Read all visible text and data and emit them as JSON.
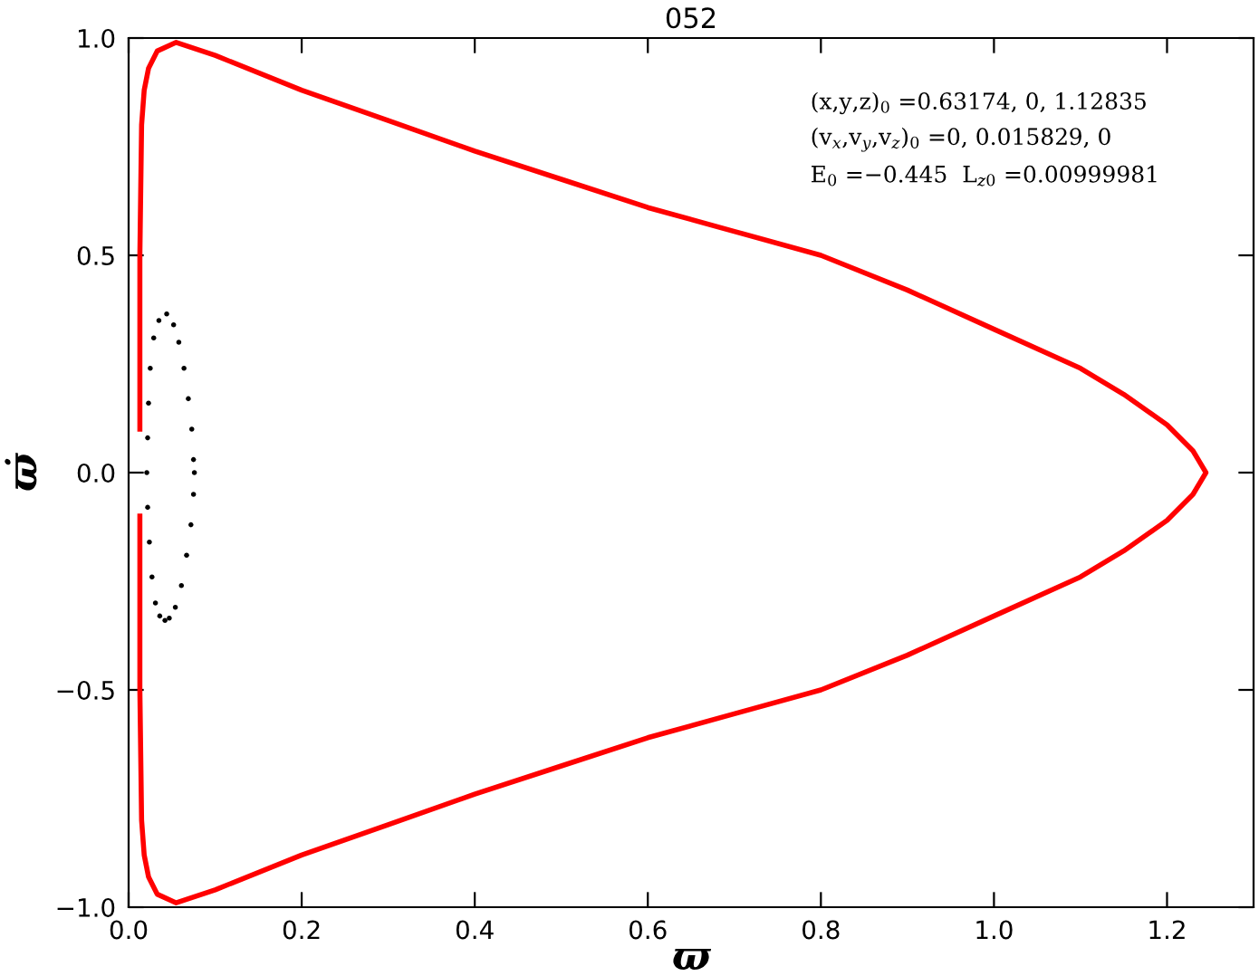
{
  "chart_data": {
    "type": "line",
    "title": "052",
    "xlabel": "ϖ",
    "ylabel": "ϖ̇",
    "annotations": [
      "(x,y,z)$_{0}$ =0.63174, 0, 1.12835",
      "(v$_{x}$,v$_{y}$,v$_{z}$)$_{0}$ =0, 0.015829, 0",
      "E$_{0}$ =−0.445  L$_{z0}$ =0.00999981"
    ],
    "series": [
      {
        "color": "#ff0000",
        "x": [
          0.013,
          0.013,
          0.015,
          0.018,
          0.023,
          0.033,
          0.055,
          0.1,
          0.2,
          0.3,
          0.4,
          0.5,
          0.6,
          0.7,
          0.8,
          0.9,
          1.0,
          1.1,
          1.15,
          1.2,
          1.23,
          1.245,
          1.23,
          1.2,
          1.15,
          1.1,
          1.0,
          0.9,
          0.8,
          0.7,
          0.6,
          0.5,
          0.4,
          0.3,
          0.2,
          0.1,
          0.055,
          0.033,
          0.023,
          0.018,
          0.015,
          0.013,
          0.013
        ],
        "values": [
          0.1,
          0.5,
          0.8,
          0.88,
          0.93,
          0.97,
          0.99,
          0.96,
          0.88,
          0.81,
          0.74,
          0.675,
          0.61,
          0.555,
          0.5,
          0.42,
          0.33,
          0.24,
          0.18,
          0.11,
          0.05,
          0.0,
          -0.05,
          -0.11,
          -0.18,
          -0.24,
          -0.33,
          -0.42,
          -0.5,
          -0.555,
          -0.61,
          -0.675,
          -0.74,
          -0.81,
          -0.88,
          -0.96,
          -0.99,
          -0.97,
          -0.93,
          -0.88,
          -0.8,
          -0.5,
          -0.1
        ]
      },
      {
        "type": "scatter",
        "color": "#000000",
        "x": [
          0.044,
          0.052,
          0.058,
          0.064,
          0.069,
          0.073,
          0.075,
          0.076,
          0.075,
          0.072,
          0.067,
          0.061,
          0.054,
          0.047,
          0.042,
          0.036,
          0.031,
          0.027,
          0.024,
          0.022,
          0.021,
          0.022,
          0.023,
          0.025,
          0.029,
          0.035
        ],
        "values": [
          0.365,
          0.34,
          0.3,
          0.24,
          0.17,
          0.1,
          0.03,
          0.0,
          -0.05,
          -0.12,
          -0.19,
          -0.26,
          -0.31,
          -0.335,
          -0.34,
          -0.33,
          -0.3,
          -0.24,
          -0.16,
          -0.08,
          0.0,
          0.08,
          0.16,
          0.24,
          0.31,
          0.35
        ]
      }
    ],
    "xlim": [
      0,
      1.3
    ],
    "xticks": [
      {
        "value": 0,
        "label": "0.0"
      },
      0.2,
      0.4,
      0.6,
      0.8,
      {
        "value": 1,
        "label": "1.0"
      },
      1.2
    ],
    "ylim": [
      -1.0,
      1.0
    ],
    "yticks": [
      {
        "value": -1.0,
        "label": "−1.0"
      },
      {
        "value": -0.5,
        "label": "−0.5"
      },
      {
        "value": 0,
        "label": "0.0"
      },
      0.5,
      {
        "value": 1,
        "label": "1.0"
      }
    ],
    "grid": false,
    "legend": false
  }
}
